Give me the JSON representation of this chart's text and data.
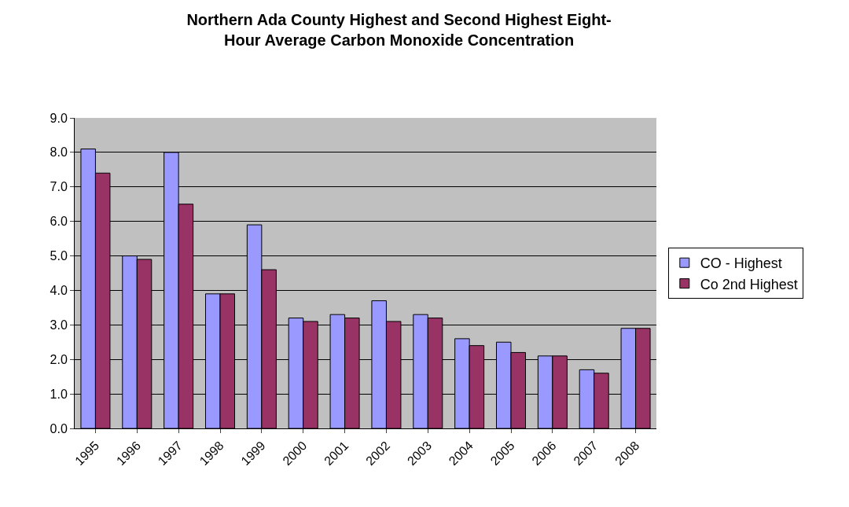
{
  "chart_data": {
    "type": "bar",
    "title": "Northern Ada County Highest and Second Highest Eight-\nHour Average Carbon Monoxide Concentration",
    "categories": [
      "1995",
      "1996",
      "1997",
      "1998",
      "1999",
      "2000",
      "2001",
      "2002",
      "2003",
      "2004",
      "2005",
      "2006",
      "2007",
      "2008"
    ],
    "series": [
      {
        "name": "CO - Highest",
        "color": "#9999ff",
        "values": [
          8.1,
          5.0,
          8.0,
          3.9,
          5.9,
          3.2,
          3.3,
          3.7,
          3.3,
          2.6,
          2.5,
          2.1,
          1.7,
          2.9
        ]
      },
      {
        "name": "Co 2nd Highest",
        "color": "#993366",
        "values": [
          7.4,
          4.9,
          6.5,
          3.9,
          4.6,
          3.1,
          3.2,
          3.1,
          3.2,
          2.4,
          2.2,
          2.1,
          1.6,
          2.9
        ]
      }
    ],
    "ylim": [
      0,
      9
    ],
    "yticks": [
      {
        "value": 0,
        "label": "0.0"
      },
      {
        "value": 1,
        "label": "1.0"
      },
      {
        "value": 2,
        "label": "2.0"
      },
      {
        "value": 3,
        "label": "3.0"
      },
      {
        "value": 4,
        "label": "4.0"
      },
      {
        "value": 5,
        "label": "5.0"
      },
      {
        "value": 6,
        "label": "6.0"
      },
      {
        "value": 7,
        "label": "7.0"
      },
      {
        "value": 8,
        "label": "8.0"
      },
      {
        "value": 9,
        "label": "9.0"
      }
    ],
    "grid": "y",
    "legend": "right"
  }
}
